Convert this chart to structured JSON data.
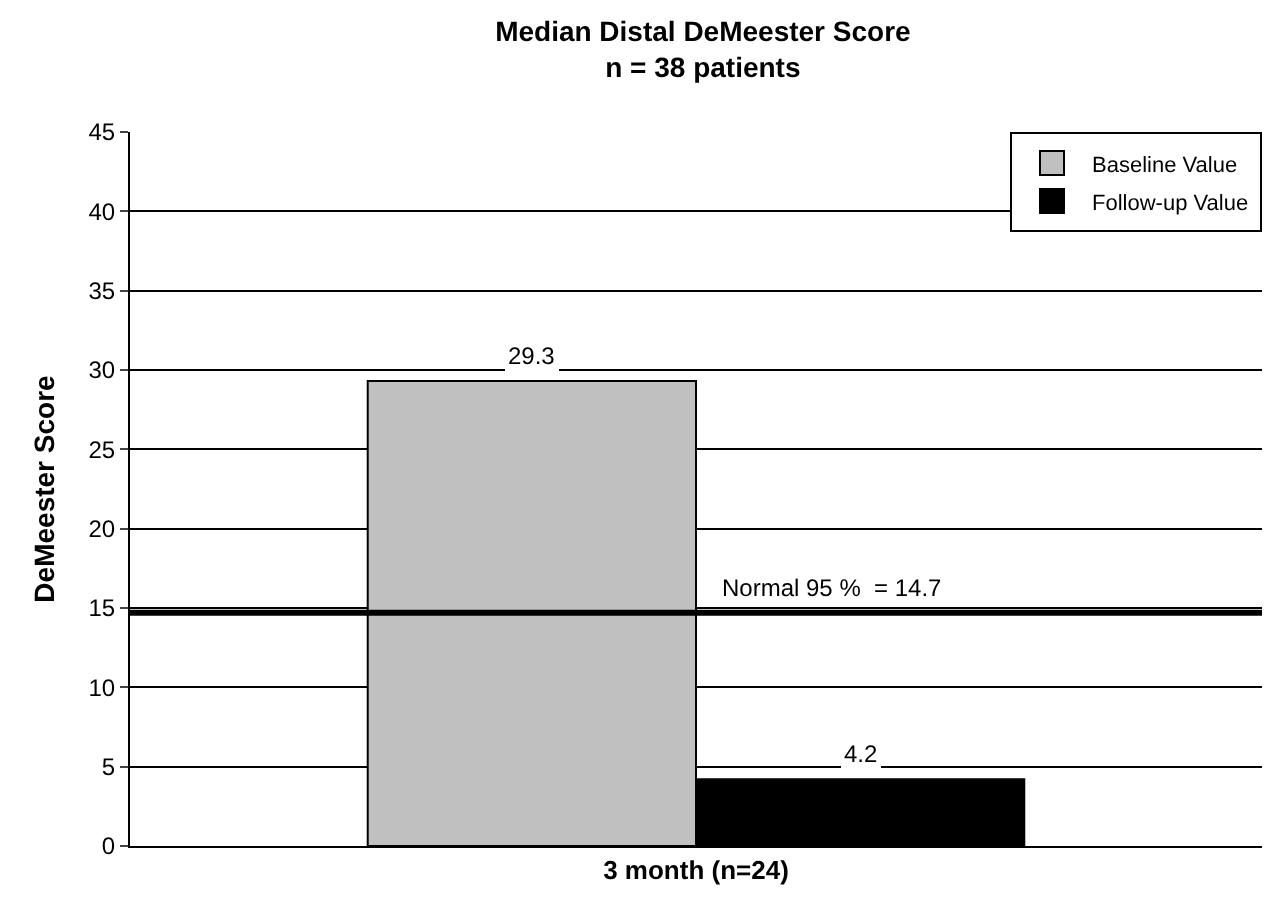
{
  "chart_data": {
    "type": "bar",
    "title": "Median Distal DeMeester Score",
    "subtitle": "n = 38 patients",
    "ylabel": "DeMeester Score",
    "categories": [
      "3 month (n=24)"
    ],
    "series": [
      {
        "name": "Baseline Value",
        "color": "#c0c0c0",
        "values": [
          29.3
        ]
      },
      {
        "name": "Follow-up Value",
        "color": "#000000",
        "values": [
          4.2
        ]
      }
    ],
    "ylim": [
      0,
      45
    ],
    "yticks": [
      0,
      5,
      10,
      15,
      20,
      25,
      30,
      35,
      40,
      45
    ],
    "grid": "y",
    "legend": "top right",
    "data_labels": true,
    "ref_lines": [
      {
        "axis": "y",
        "value": 14.7,
        "label": "Normal 95 %  = 14.7",
        "color": "#000000"
      }
    ]
  }
}
